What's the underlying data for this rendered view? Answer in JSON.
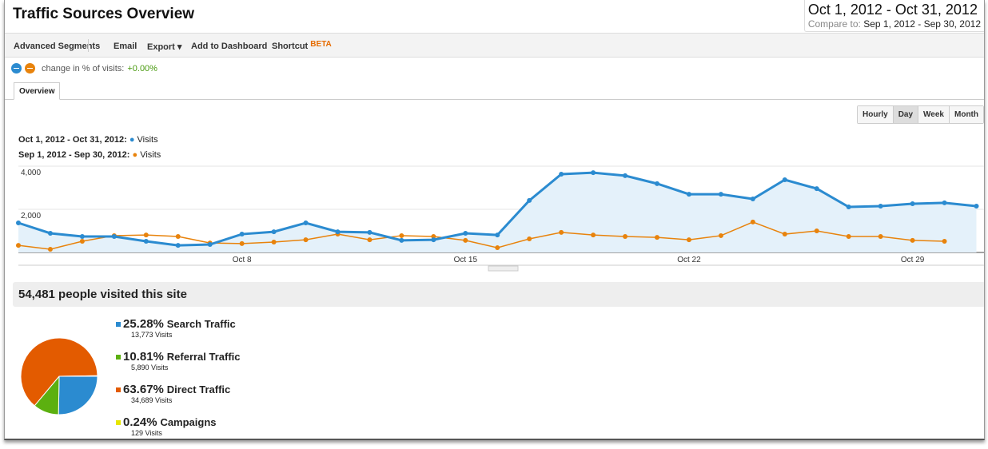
{
  "header": {
    "title": "Traffic Sources Overview",
    "date_range": "Oct 1, 2012 - Oct 31, 2012",
    "compare_label": "Compare to:",
    "compare_range": "Sep 1, 2012 - Sep 30, 2012"
  },
  "toolbar": {
    "advanced_segments": "Advanced Segments",
    "email": "Email",
    "export": "Export ▾",
    "add_dashboard": "Add to Dashboard",
    "shortcut": "Shortcut",
    "beta": "BETA"
  },
  "change": {
    "label": "change in % of visits:",
    "value": "+0.00%"
  },
  "tabs": [
    "Overview"
  ],
  "granularity": {
    "options": [
      "Hourly",
      "Day",
      "Week",
      "Month"
    ],
    "selected": "Day"
  },
  "legend": [
    {
      "range": "Oct 1, 2012 - Oct 31, 2012:",
      "metric": "Visits",
      "color": "#2b8bd0"
    },
    {
      "range": "Sep 1, 2012 - Sep 30, 2012:",
      "metric": "Visits",
      "color": "#e8830c"
    }
  ],
  "visited": "54,481 people visited this site",
  "sources": [
    {
      "pct": "25.28%",
      "name": "Search Traffic",
      "visits": "13,773 Visits",
      "color": "#2b8bd0",
      "value": 25.28
    },
    {
      "pct": "10.81%",
      "name": "Referral Traffic",
      "visits": "5,890 Visits",
      "color": "#5cb010",
      "value": 10.81
    },
    {
      "pct": "63.67%",
      "name": "Direct Traffic",
      "visits": "34,689 Visits",
      "color": "#e35b00",
      "value": 63.67
    },
    {
      "pct": "0.24%",
      "name": "Campaigns",
      "visits": "129 Visits",
      "color": "#e6e600",
      "value": 0.24
    }
  ],
  "chart_data": [
    {
      "type": "area",
      "y_ticks": [
        "2,000",
        "4,000"
      ],
      "y_tick_values": [
        2000,
        4000
      ],
      "ylim": [
        0,
        4000
      ],
      "x_ticks": [
        "Oct 8",
        "Oct 15",
        "Oct 22",
        "Oct 29"
      ],
      "x_tick_days": [
        8,
        15,
        22,
        29
      ],
      "grid": true,
      "series": [
        {
          "name": "Oct 1, 2012 - Oct 31, 2012: Visits",
          "color": "#2b8bd0",
          "values": [
            1370,
            890,
            740,
            740,
            520,
            330,
            370,
            850,
            960,
            1370,
            960,
            930,
            560,
            590,
            890,
            810,
            2410,
            3630,
            3700,
            3560,
            3190,
            2700,
            2700,
            2480,
            3370,
            2960,
            2110,
            2150,
            2260,
            2300,
            2150
          ]
        },
        {
          "name": "Sep 1, 2012 - Sep 30, 2012: Visits",
          "color": "#e8830c",
          "values": [
            330,
            150,
            520,
            780,
            810,
            740,
            440,
            410,
            480,
            590,
            850,
            590,
            780,
            740,
            560,
            220,
            630,
            930,
            810,
            740,
            700,
            590,
            780,
            1410,
            850,
            1000,
            740,
            740,
            560,
            520
          ]
        }
      ]
    },
    {
      "type": "pie",
      "labels": [
        "Search Traffic",
        "Referral Traffic",
        "Direct Traffic",
        "Campaigns"
      ],
      "values": [
        25.28,
        10.81,
        63.67,
        0.24
      ]
    }
  ]
}
